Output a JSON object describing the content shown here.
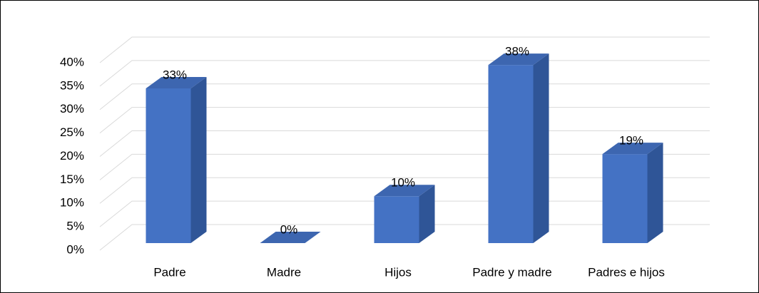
{
  "chart_data": {
    "type": "bar3d",
    "categories": [
      "Padre",
      "Madre",
      "Hijos",
      "Padre y madre",
      "Padres e hijos"
    ],
    "values": [
      33,
      0,
      10,
      38,
      19
    ],
    "value_labels": [
      "33%",
      "0%",
      "10%",
      "38%",
      "19%"
    ],
    "color": "#4472c4",
    "ylim": [
      0,
      40
    ],
    "yticks": [
      {
        "value": 0,
        "label": "0%"
      },
      {
        "value": 5,
        "label": "5%"
      },
      {
        "value": 10,
        "label": "10%"
      },
      {
        "value": 15,
        "label": "15%"
      },
      {
        "value": 20,
        "label": "20%"
      },
      {
        "value": 25,
        "label": "25%"
      },
      {
        "value": 30,
        "label": "30%"
      },
      {
        "value": 35,
        "label": "35%"
      },
      {
        "value": 40,
        "label": "40%"
      }
    ],
    "grid": true
  }
}
